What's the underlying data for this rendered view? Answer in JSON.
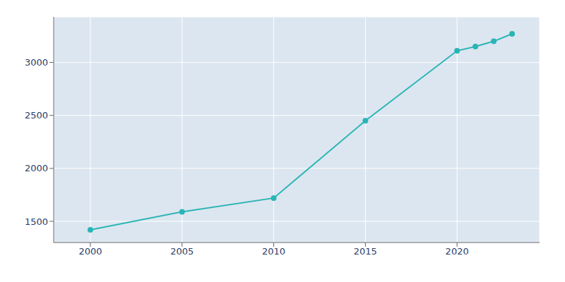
{
  "chart_data": {
    "type": "line",
    "x": [
      2000,
      2005,
      2010,
      2015,
      2020,
      2021,
      2022,
      2023
    ],
    "values": [
      1420,
      1590,
      1720,
      2450,
      3110,
      3150,
      3200,
      3270
    ],
    "color": "#2ab5b5",
    "marker": "circle",
    "xlim": [
      1998,
      2024.5
    ],
    "ylim": [
      1300,
      3430
    ],
    "xticks": [
      2000,
      2005,
      2010,
      2015,
      2020
    ],
    "yticks": [
      1500,
      2000,
      2500,
      3000
    ],
    "grid": true
  }
}
